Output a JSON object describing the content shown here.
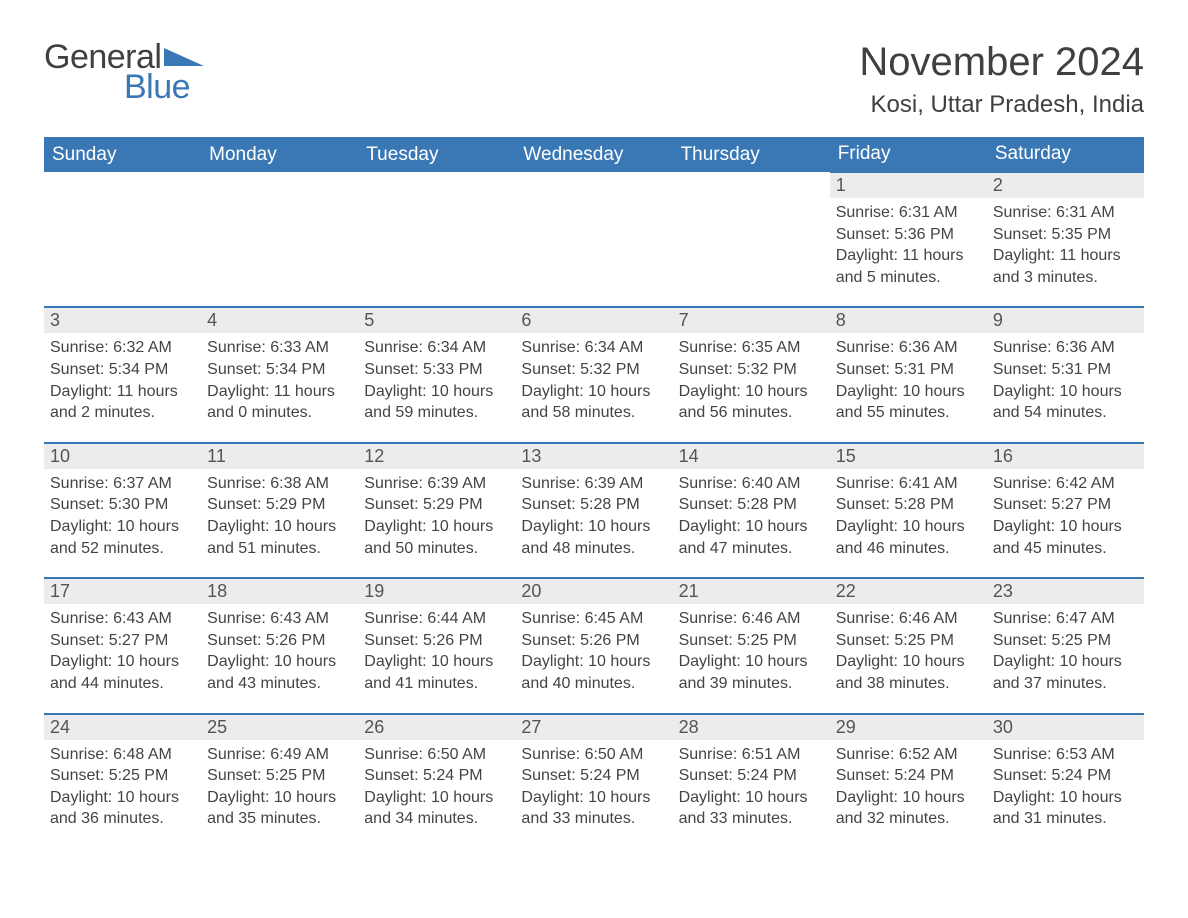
{
  "logo": {
    "general": "General",
    "blue": "Blue",
    "triangle_color": "#3a78b5"
  },
  "title": "November 2024",
  "location": "Kosi, Uttar Pradesh, India",
  "colors": {
    "header_bg": "#3a78b5",
    "header_text": "#ffffff",
    "daynum_bg": "#ececec",
    "daynum_border": "#3a78b5",
    "body_text": "#444444",
    "background": "#ffffff"
  },
  "fonts": {
    "title_size": 40,
    "location_size": 24,
    "dow_size": 19,
    "body_size": 16
  },
  "days_of_week": [
    "Sunday",
    "Monday",
    "Tuesday",
    "Wednesday",
    "Thursday",
    "Friday",
    "Saturday"
  ],
  "weeks": [
    [
      null,
      null,
      null,
      null,
      null,
      {
        "n": "1",
        "sunrise": "Sunrise: 6:31 AM",
        "sunset": "Sunset: 5:36 PM",
        "day1": "Daylight: 11 hours",
        "day2": "and 5 minutes."
      },
      {
        "n": "2",
        "sunrise": "Sunrise: 6:31 AM",
        "sunset": "Sunset: 5:35 PM",
        "day1": "Daylight: 11 hours",
        "day2": "and 3 minutes."
      }
    ],
    [
      {
        "n": "3",
        "sunrise": "Sunrise: 6:32 AM",
        "sunset": "Sunset: 5:34 PM",
        "day1": "Daylight: 11 hours",
        "day2": "and 2 minutes."
      },
      {
        "n": "4",
        "sunrise": "Sunrise: 6:33 AM",
        "sunset": "Sunset: 5:34 PM",
        "day1": "Daylight: 11 hours",
        "day2": "and 0 minutes."
      },
      {
        "n": "5",
        "sunrise": "Sunrise: 6:34 AM",
        "sunset": "Sunset: 5:33 PM",
        "day1": "Daylight: 10 hours",
        "day2": "and 59 minutes."
      },
      {
        "n": "6",
        "sunrise": "Sunrise: 6:34 AM",
        "sunset": "Sunset: 5:32 PM",
        "day1": "Daylight: 10 hours",
        "day2": "and 58 minutes."
      },
      {
        "n": "7",
        "sunrise": "Sunrise: 6:35 AM",
        "sunset": "Sunset: 5:32 PM",
        "day1": "Daylight: 10 hours",
        "day2": "and 56 minutes."
      },
      {
        "n": "8",
        "sunrise": "Sunrise: 6:36 AM",
        "sunset": "Sunset: 5:31 PM",
        "day1": "Daylight: 10 hours",
        "day2": "and 55 minutes."
      },
      {
        "n": "9",
        "sunrise": "Sunrise: 6:36 AM",
        "sunset": "Sunset: 5:31 PM",
        "day1": "Daylight: 10 hours",
        "day2": "and 54 minutes."
      }
    ],
    [
      {
        "n": "10",
        "sunrise": "Sunrise: 6:37 AM",
        "sunset": "Sunset: 5:30 PM",
        "day1": "Daylight: 10 hours",
        "day2": "and 52 minutes."
      },
      {
        "n": "11",
        "sunrise": "Sunrise: 6:38 AM",
        "sunset": "Sunset: 5:29 PM",
        "day1": "Daylight: 10 hours",
        "day2": "and 51 minutes."
      },
      {
        "n": "12",
        "sunrise": "Sunrise: 6:39 AM",
        "sunset": "Sunset: 5:29 PM",
        "day1": "Daylight: 10 hours",
        "day2": "and 50 minutes."
      },
      {
        "n": "13",
        "sunrise": "Sunrise: 6:39 AM",
        "sunset": "Sunset: 5:28 PM",
        "day1": "Daylight: 10 hours",
        "day2": "and 48 minutes."
      },
      {
        "n": "14",
        "sunrise": "Sunrise: 6:40 AM",
        "sunset": "Sunset: 5:28 PM",
        "day1": "Daylight: 10 hours",
        "day2": "and 47 minutes."
      },
      {
        "n": "15",
        "sunrise": "Sunrise: 6:41 AM",
        "sunset": "Sunset: 5:28 PM",
        "day1": "Daylight: 10 hours",
        "day2": "and 46 minutes."
      },
      {
        "n": "16",
        "sunrise": "Sunrise: 6:42 AM",
        "sunset": "Sunset: 5:27 PM",
        "day1": "Daylight: 10 hours",
        "day2": "and 45 minutes."
      }
    ],
    [
      {
        "n": "17",
        "sunrise": "Sunrise: 6:43 AM",
        "sunset": "Sunset: 5:27 PM",
        "day1": "Daylight: 10 hours",
        "day2": "and 44 minutes."
      },
      {
        "n": "18",
        "sunrise": "Sunrise: 6:43 AM",
        "sunset": "Sunset: 5:26 PM",
        "day1": "Daylight: 10 hours",
        "day2": "and 43 minutes."
      },
      {
        "n": "19",
        "sunrise": "Sunrise: 6:44 AM",
        "sunset": "Sunset: 5:26 PM",
        "day1": "Daylight: 10 hours",
        "day2": "and 41 minutes."
      },
      {
        "n": "20",
        "sunrise": "Sunrise: 6:45 AM",
        "sunset": "Sunset: 5:26 PM",
        "day1": "Daylight: 10 hours",
        "day2": "and 40 minutes."
      },
      {
        "n": "21",
        "sunrise": "Sunrise: 6:46 AM",
        "sunset": "Sunset: 5:25 PM",
        "day1": "Daylight: 10 hours",
        "day2": "and 39 minutes."
      },
      {
        "n": "22",
        "sunrise": "Sunrise: 6:46 AM",
        "sunset": "Sunset: 5:25 PM",
        "day1": "Daylight: 10 hours",
        "day2": "and 38 minutes."
      },
      {
        "n": "23",
        "sunrise": "Sunrise: 6:47 AM",
        "sunset": "Sunset: 5:25 PM",
        "day1": "Daylight: 10 hours",
        "day2": "and 37 minutes."
      }
    ],
    [
      {
        "n": "24",
        "sunrise": "Sunrise: 6:48 AM",
        "sunset": "Sunset: 5:25 PM",
        "day1": "Daylight: 10 hours",
        "day2": "and 36 minutes."
      },
      {
        "n": "25",
        "sunrise": "Sunrise: 6:49 AM",
        "sunset": "Sunset: 5:25 PM",
        "day1": "Daylight: 10 hours",
        "day2": "and 35 minutes."
      },
      {
        "n": "26",
        "sunrise": "Sunrise: 6:50 AM",
        "sunset": "Sunset: 5:24 PM",
        "day1": "Daylight: 10 hours",
        "day2": "and 34 minutes."
      },
      {
        "n": "27",
        "sunrise": "Sunrise: 6:50 AM",
        "sunset": "Sunset: 5:24 PM",
        "day1": "Daylight: 10 hours",
        "day2": "and 33 minutes."
      },
      {
        "n": "28",
        "sunrise": "Sunrise: 6:51 AM",
        "sunset": "Sunset: 5:24 PM",
        "day1": "Daylight: 10 hours",
        "day2": "and 33 minutes."
      },
      {
        "n": "29",
        "sunrise": "Sunrise: 6:52 AM",
        "sunset": "Sunset: 5:24 PM",
        "day1": "Daylight: 10 hours",
        "day2": "and 32 minutes."
      },
      {
        "n": "30",
        "sunrise": "Sunrise: 6:53 AM",
        "sunset": "Sunset: 5:24 PM",
        "day1": "Daylight: 10 hours",
        "day2": "and 31 minutes."
      }
    ]
  ]
}
